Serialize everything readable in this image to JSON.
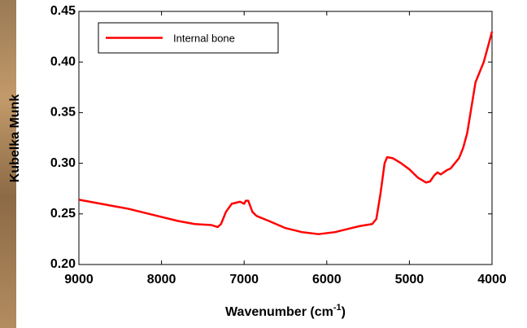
{
  "chart_data": {
    "type": "line",
    "xlabel": {
      "text": "Wavenumber (cm",
      "sup": "-1",
      "tail": ")"
    },
    "ylabel": "Kubelka Munk",
    "x": [
      9000,
      8800,
      8600,
      8400,
      8200,
      8000,
      7800,
      7600,
      7400,
      7320,
      7280,
      7220,
      7150,
      7050,
      7000,
      6980,
      6950,
      6900,
      6850,
      6700,
      6500,
      6300,
      6100,
      5900,
      5700,
      5600,
      5450,
      5400,
      5350,
      5300,
      5270,
      5200,
      5100,
      5000,
      4900,
      4800,
      4750,
      4700,
      4660,
      4620,
      4550,
      4500,
      4400,
      4350,
      4300,
      4250,
      4200,
      4150,
      4100,
      4050,
      4000
    ],
    "series": [
      {
        "name": "Internal bone",
        "color": "#ff0000",
        "values": [
          0.264,
          0.261,
          0.258,
          0.255,
          0.251,
          0.247,
          0.243,
          0.24,
          0.239,
          0.237,
          0.24,
          0.252,
          0.26,
          0.262,
          0.26,
          0.263,
          0.263,
          0.252,
          0.248,
          0.243,
          0.236,
          0.232,
          0.23,
          0.232,
          0.236,
          0.238,
          0.24,
          0.245,
          0.27,
          0.3,
          0.306,
          0.305,
          0.3,
          0.294,
          0.286,
          0.281,
          0.282,
          0.288,
          0.291,
          0.289,
          0.293,
          0.295,
          0.305,
          0.315,
          0.33,
          0.355,
          0.38,
          0.39,
          0.4,
          0.415,
          0.43
        ]
      }
    ],
    "xlim": [
      9000,
      4000
    ],
    "xticks": [
      9000,
      8000,
      7000,
      6000,
      5000,
      4000
    ],
    "ylim": [
      0.2,
      0.45
    ],
    "yticks": [
      {
        "value": 0.2,
        "label": "0.20"
      },
      0.25,
      {
        "value": 0.3,
        "label": "0.30"
      },
      0.35,
      {
        "value": 0.4,
        "label": "0.40"
      },
      0.45
    ],
    "legend": "upper left"
  }
}
